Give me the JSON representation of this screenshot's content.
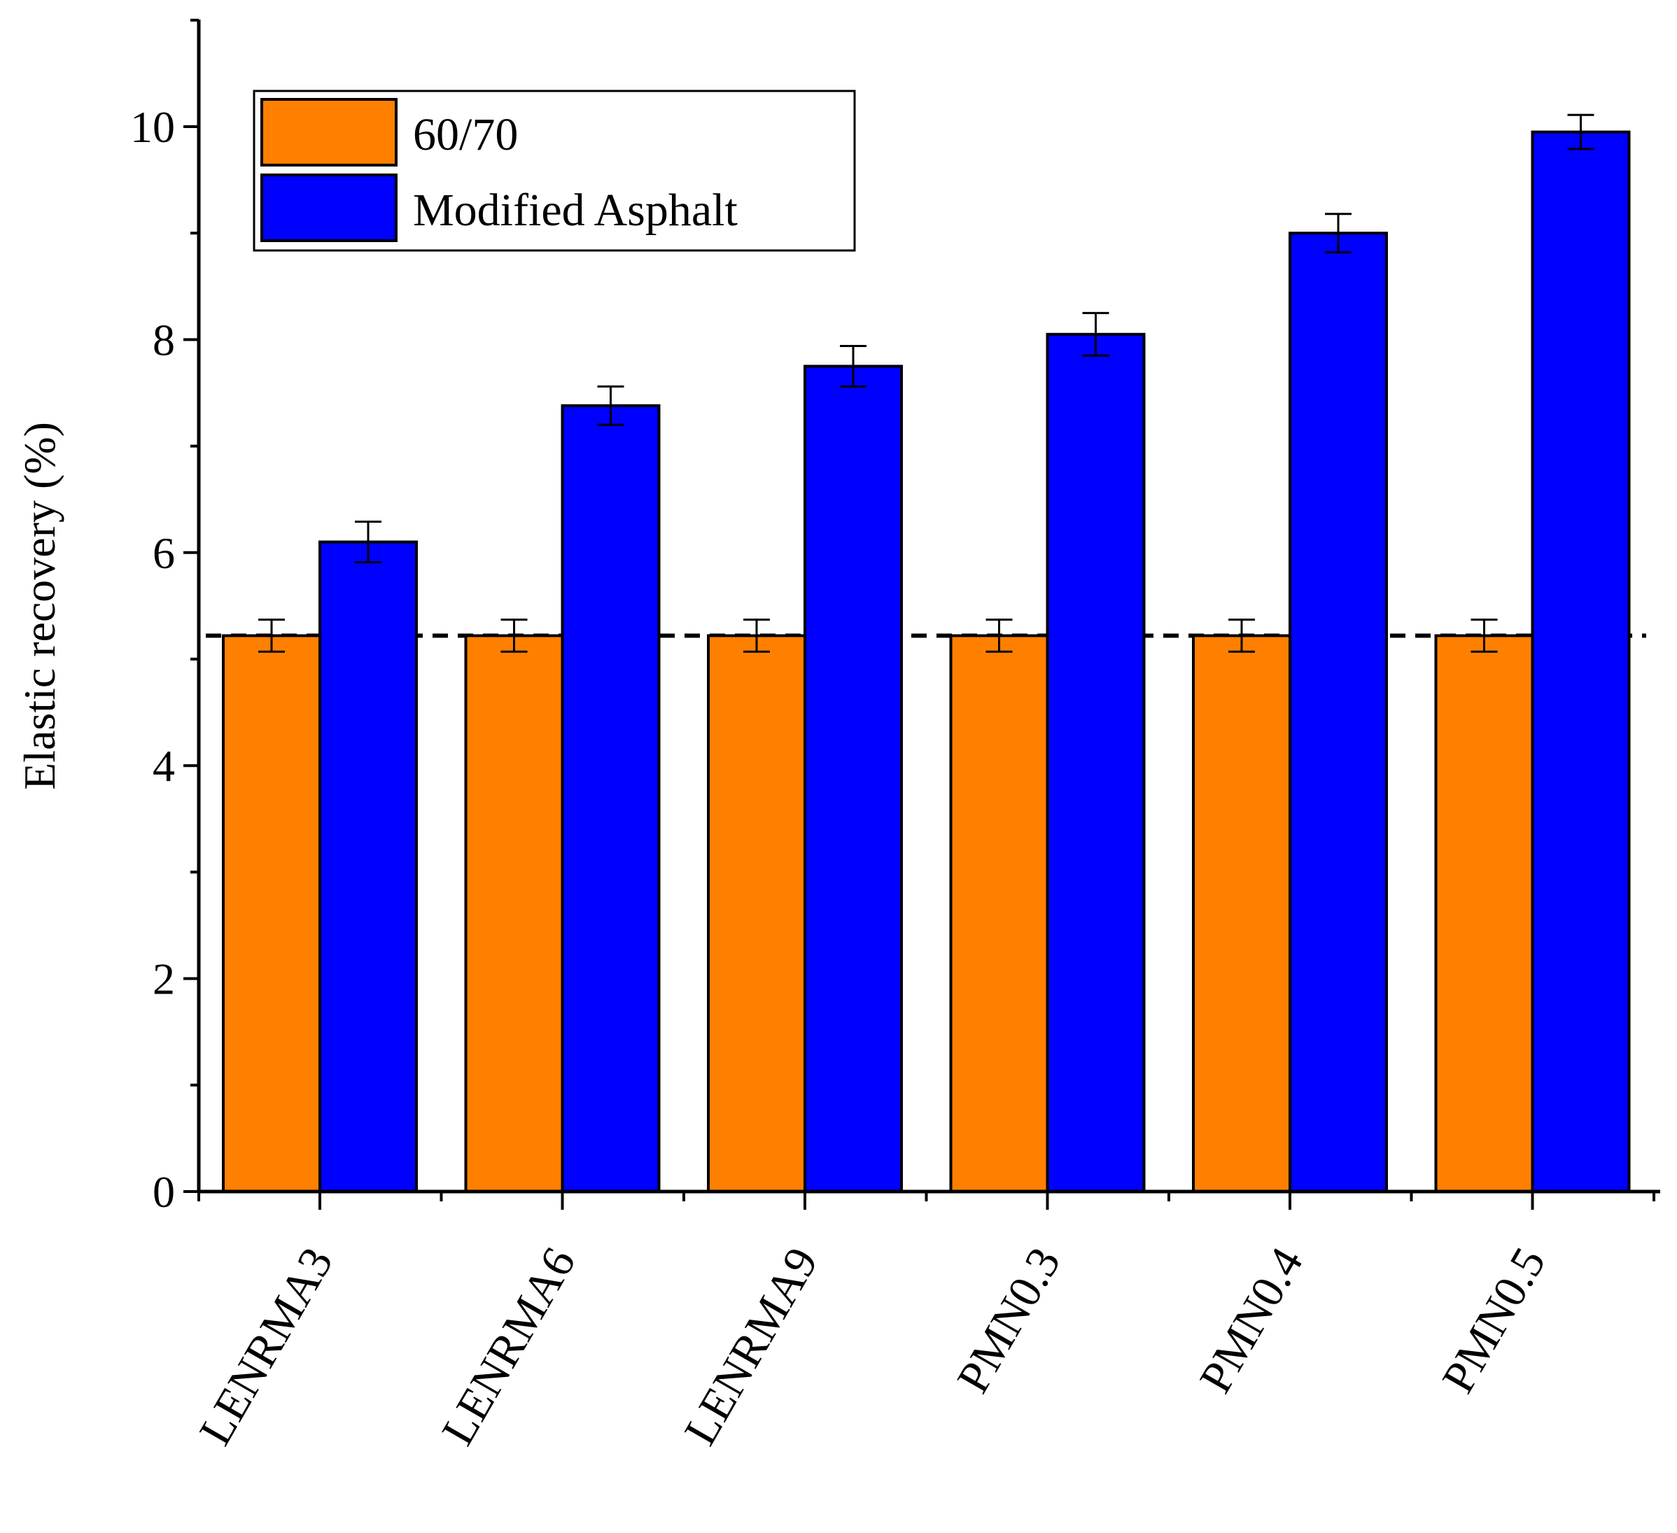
{
  "chart_data": {
    "type": "bar",
    "title": "",
    "xlabel": "",
    "ylabel": "Elastic recovery (%)",
    "ylim": [
      0,
      11
    ],
    "yticks": [
      0,
      2,
      4,
      6,
      8,
      10
    ],
    "ytick_labels": [
      "0",
      "2",
      "4",
      "6",
      "8",
      "10"
    ],
    "categories": [
      "LENRMA3",
      "LENRMA6",
      "LENRMA9",
      "PMN0.3",
      "PMN0.4",
      "PMN0.5"
    ],
    "series": [
      {
        "name": "60/70",
        "color": "#FF8000",
        "values": [
          5.22,
          5.22,
          5.22,
          5.22,
          5.22,
          5.22
        ],
        "errors": [
          0.15,
          0.15,
          0.15,
          0.15,
          0.15,
          0.15
        ]
      },
      {
        "name": "Modified Asphalt",
        "color": "#0000FF",
        "values": [
          6.1,
          7.38,
          7.75,
          8.05,
          9.0,
          9.95
        ],
        "errors": [
          0.19,
          0.18,
          0.19,
          0.2,
          0.18,
          0.16
        ]
      }
    ],
    "reference_line": {
      "value": 5.22,
      "style": "dashed"
    },
    "legend": {
      "position": "top-left",
      "entries": [
        "60/70",
        "Modified Asphalt"
      ]
    },
    "grid": false
  }
}
